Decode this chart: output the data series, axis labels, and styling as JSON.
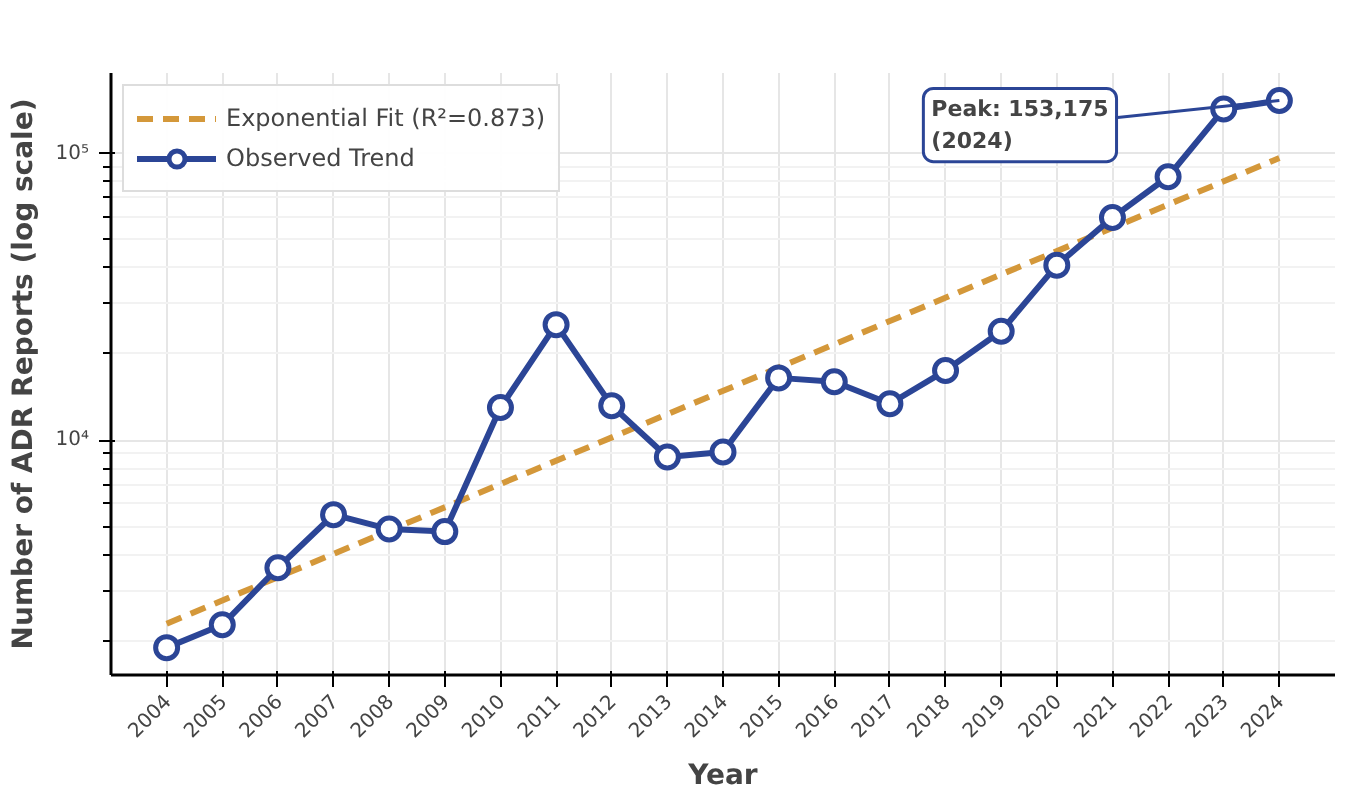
{
  "chart_data": {
    "type": "line",
    "xlabel": "Year",
    "ylabel": "Number of ADR Reports (log scale)",
    "x": [
      2004,
      2005,
      2006,
      2007,
      2008,
      2009,
      2010,
      2011,
      2012,
      2013,
      2014,
      2015,
      2016,
      2017,
      2018,
      2019,
      2020,
      2021,
      2022,
      2023,
      2024
    ],
    "series": [
      {
        "name": "Exponential Fit (R²=0.873)",
        "color": "#d4983a",
        "line_style": "dashed",
        "marker": "none",
        "x": [
          2004,
          2024
        ],
        "values": [
          2290,
          96500
        ]
      },
      {
        "name": "Observed Trend",
        "color": "#2b4596",
        "line_style": "solid",
        "marker": "circle",
        "values": [
          1890,
          2270,
          3590,
          5500,
          4900,
          4800,
          13000,
          25300,
          13200,
          8740,
          9100,
          16500,
          16000,
          13400,
          17500,
          24000,
          40800,
          59800,
          83000,
          143000,
          153175
        ]
      }
    ],
    "log": "y",
    "xlim": [
      2003,
      2025
    ],
    "ylim": [
      1517,
      191000
    ],
    "xticks": [
      2004,
      2005,
      2006,
      2007,
      2008,
      2009,
      2010,
      2011,
      2012,
      2013,
      2014,
      2015,
      2016,
      2017,
      2018,
      2019,
      2020,
      2021,
      2022,
      2023,
      2024
    ],
    "yticks": [
      {
        "value": 10000,
        "label": "10⁴"
      },
      {
        "value": 100000,
        "label": "10⁵"
      }
    ],
    "grid": true,
    "legend": "top left",
    "annotations": [
      {
        "text": "Peak: 153,175\n(2024)",
        "x": 2024,
        "y": 153175
      }
    ]
  }
}
